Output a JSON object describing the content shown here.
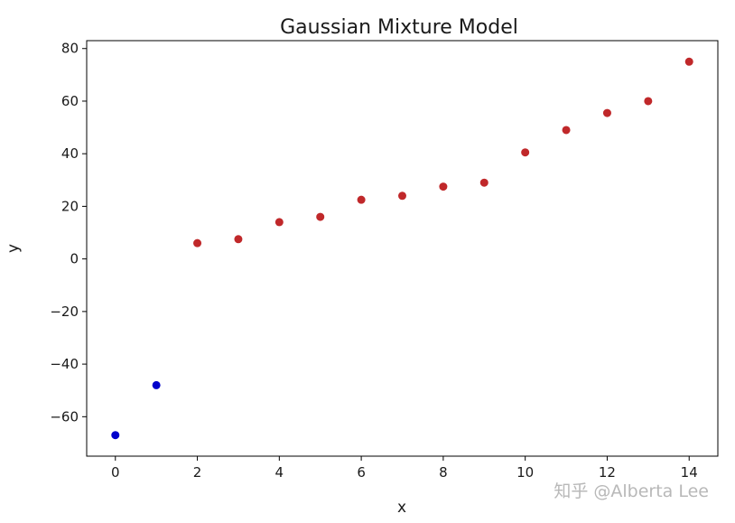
{
  "watermark": "知乎 @Alberta Lee",
  "chart_data": {
    "type": "scatter",
    "title": "Gaussian Mixture Model",
    "xlabel": "x",
    "ylabel": "y",
    "xlim": [
      -0.7,
      14.7
    ],
    "ylim": [
      -75,
      83
    ],
    "xticks": [
      0,
      2,
      4,
      6,
      8,
      10,
      12,
      14
    ],
    "yticks": [
      -60,
      -40,
      -20,
      0,
      20,
      40,
      60,
      80
    ],
    "grid": false,
    "series": [
      {
        "color": "#0000cc",
        "points": [
          {
            "x": 0,
            "y": -67
          },
          {
            "x": 1,
            "y": -48
          }
        ]
      },
      {
        "color": "#c0282a",
        "points": [
          {
            "x": 2,
            "y": 6
          },
          {
            "x": 3,
            "y": 7.5
          },
          {
            "x": 4,
            "y": 14
          },
          {
            "x": 5,
            "y": 16
          },
          {
            "x": 6,
            "y": 22.5
          },
          {
            "x": 7,
            "y": 24
          },
          {
            "x": 8,
            "y": 27.5
          },
          {
            "x": 9,
            "y": 29
          },
          {
            "x": 10,
            "y": 40.5
          },
          {
            "x": 11,
            "y": 49
          },
          {
            "x": 12,
            "y": 55.5
          },
          {
            "x": 13,
            "y": 60
          },
          {
            "x": 14,
            "y": 75
          }
        ]
      }
    ]
  }
}
